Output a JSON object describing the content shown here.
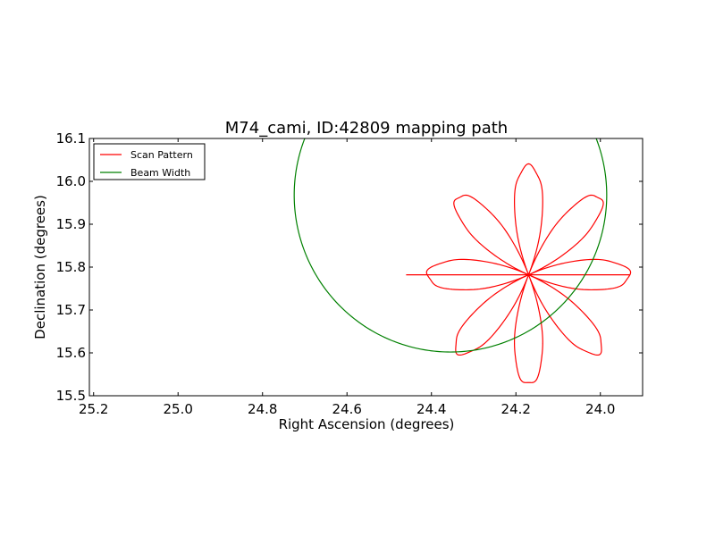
{
  "chart_data": {
    "type": "line",
    "title": "M74_cami, ID:42809 mapping path",
    "xlabel": "Right Ascension (degrees)",
    "ylabel": "Declination (degrees)",
    "xlim": [
      25.21,
      23.9
    ],
    "ylim": [
      15.5,
      16.1
    ],
    "x_ticks": [
      25.2,
      25.0,
      24.8,
      24.6,
      24.4,
      24.2,
      24.0
    ],
    "x_tick_labels": [
      "25.2",
      "25.0",
      "24.8",
      "24.6",
      "24.4",
      "24.2",
      "24.0"
    ],
    "y_ticks": [
      15.5,
      15.6,
      15.7,
      15.8,
      15.9,
      16.0,
      16.1
    ],
    "y_tick_labels": [
      "15.5",
      "15.6",
      "15.7",
      "15.8",
      "15.9",
      "16.0",
      "16.1"
    ],
    "grid": false,
    "legend_position": "top-left",
    "series": [
      {
        "name": "Scan Pattern",
        "color": "#ff0000",
        "kind": "rose",
        "center": [
          24.17,
          15.782
        ],
        "petals": 8,
        "radius_x": 0.24,
        "radius_y": 0.255,
        "start": [
          24.46,
          15.782
        ]
      },
      {
        "name": "Beam Width",
        "color": "#008000",
        "kind": "circle",
        "center": [
          24.355,
          15.968
        ],
        "radius_x": 0.37,
        "radius_y": 0.366
      }
    ]
  }
}
